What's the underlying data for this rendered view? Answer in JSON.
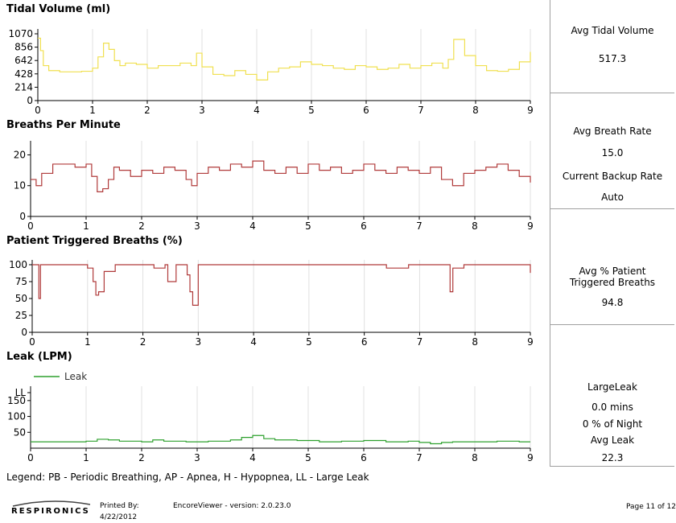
{
  "panels": [
    {
      "title": "Tidal Volume (ml)",
      "y_ticks": [
        "1070",
        "856",
        "642",
        "428",
        "214",
        "0"
      ],
      "x_ticks": [
        "0",
        "1",
        "2",
        "3",
        "4",
        "5",
        "6",
        "7",
        "8",
        "9"
      ]
    },
    {
      "title": "Breaths Per Minute",
      "y_ticks": [
        "20",
        "10",
        "0"
      ],
      "x_ticks": [
        "0",
        "1",
        "2",
        "3",
        "4",
        "5",
        "6",
        "7",
        "8",
        "9"
      ]
    },
    {
      "title": "Patient Triggered Breaths (%)",
      "y_ticks": [
        "100",
        "75",
        "50",
        "25",
        "0"
      ],
      "x_ticks": [
        "0",
        "1",
        "2",
        "3",
        "4",
        "5",
        "6",
        "7",
        "8",
        "9"
      ]
    },
    {
      "title": "Leak (LPM)",
      "y_ticks": [
        "LL",
        "150",
        "100",
        "50"
      ],
      "x_ticks": [
        "0",
        "1",
        "2",
        "3",
        "4",
        "5",
        "6",
        "7",
        "8",
        "9"
      ],
      "legend": "Leak"
    }
  ],
  "side": {
    "tidal_label": "Avg Tidal Volume",
    "tidal_value": "517.3",
    "breath_rate_label": "Avg Breath Rate",
    "breath_rate_value": "15.0",
    "backup_label": "Current Backup Rate",
    "backup_value": "Auto",
    "pt_label_1": "Avg % Patient",
    "pt_label_2": "Triggered Breaths",
    "pt_value": "94.8",
    "leak_title": "LargeLeak",
    "leak_mins": "0.0 mins",
    "leak_pct": "0 % of Night",
    "avg_leak_label": "Avg Leak",
    "avg_leak_value": "22.3"
  },
  "legend_note": "Legend: PB - Periodic Breathing, AP - Apnea, H - Hypopnea, LL - Large Leak",
  "footer": {
    "printed_by_label": "Printed By:",
    "printed_date": "4/22/2012",
    "version": "EncoreViewer - version: 2.0.23.0",
    "page": "Page 11 of 12",
    "logo": "RESPIRONICS"
  },
  "colors": {
    "tidal": "#f0e050",
    "breaths": "#b03a3a",
    "triggered": "#b03a3a",
    "leak": "#2ea02e",
    "grid": "#e0e0e0",
    "axis": "#000000"
  },
  "chart_data": [
    {
      "type": "line",
      "title": "Tidal Volume (ml)",
      "ylim": [
        0,
        1070
      ],
      "xlim": [
        0,
        9
      ],
      "x": [
        0,
        0.05,
        0.1,
        0.2,
        0.4,
        0.6,
        0.8,
        1.0,
        1.1,
        1.2,
        1.3,
        1.4,
        1.5,
        1.6,
        1.8,
        2.0,
        2.2,
        2.4,
        2.6,
        2.8,
        2.9,
        3.0,
        3.2,
        3.4,
        3.6,
        3.8,
        4.0,
        4.2,
        4.4,
        4.6,
        4.8,
        5.0,
        5.2,
        5.4,
        5.6,
        5.8,
        6.0,
        6.2,
        6.4,
        6.6,
        6.8,
        7.0,
        7.2,
        7.4,
        7.5,
        7.6,
        7.8,
        8.0,
        8.2,
        8.4,
        8.6,
        8.8,
        9.0
      ],
      "y": [
        1000,
        800,
        560,
        480,
        460,
        460,
        470,
        520,
        700,
        920,
        820,
        640,
        560,
        600,
        580,
        520,
        560,
        560,
        600,
        560,
        760,
        540,
        420,
        400,
        480,
        420,
        330,
        460,
        520,
        540,
        620,
        580,
        560,
        520,
        500,
        560,
        540,
        500,
        520,
        580,
        520,
        560,
        600,
        520,
        660,
        980,
        720,
        560,
        480,
        470,
        500,
        620,
        780
      ]
    },
    {
      "type": "line",
      "title": "Breaths Per Minute",
      "ylim": [
        0,
        23
      ],
      "xlim": [
        0,
        9
      ],
      "x": [
        0,
        0.1,
        0.2,
        0.4,
        0.6,
        0.8,
        1.0,
        1.1,
        1.2,
        1.3,
        1.4,
        1.5,
        1.6,
        1.8,
        2.0,
        2.2,
        2.4,
        2.6,
        2.8,
        2.9,
        3.0,
        3.2,
        3.4,
        3.6,
        3.8,
        4.0,
        4.2,
        4.4,
        4.6,
        4.8,
        5.0,
        5.2,
        5.4,
        5.6,
        5.8,
        6.0,
        6.2,
        6.4,
        6.6,
        6.8,
        7.0,
        7.2,
        7.4,
        7.6,
        7.8,
        8.0,
        8.2,
        8.4,
        8.6,
        8.8,
        9.0
      ],
      "y": [
        12,
        10,
        14,
        17,
        17,
        16,
        17,
        13,
        8,
        9,
        12,
        16,
        15,
        13,
        15,
        14,
        16,
        15,
        12,
        10,
        14,
        16,
        15,
        17,
        16,
        18,
        15,
        14,
        16,
        14,
        17,
        15,
        16,
        14,
        15,
        17,
        15,
        14,
        16,
        15,
        14,
        16,
        12,
        10,
        14,
        15,
        16,
        17,
        15,
        13,
        11
      ]
    },
    {
      "type": "line",
      "title": "Patient Triggered Breaths (%)",
      "ylim": [
        0,
        100
      ],
      "xlim": [
        0,
        9
      ],
      "x": [
        0,
        0.1,
        0.12,
        0.15,
        0.3,
        0.6,
        0.9,
        1.0,
        1.1,
        1.15,
        1.2,
        1.3,
        1.5,
        1.8,
        2.0,
        2.2,
        2.4,
        2.45,
        2.6,
        2.8,
        2.85,
        2.9,
        3.0,
        3.3,
        3.6,
        4.0,
        4.4,
        4.8,
        5.2,
        5.6,
        6.0,
        6.4,
        6.8,
        7.2,
        7.5,
        7.55,
        7.6,
        7.8,
        8.2,
        8.6,
        9.0
      ],
      "y": [
        100,
        100,
        50,
        100,
        100,
        100,
        100,
        95,
        75,
        55,
        60,
        90,
        100,
        100,
        100,
        95,
        100,
        75,
        100,
        85,
        60,
        40,
        100,
        100,
        100,
        100,
        100,
        100,
        100,
        100,
        100,
        95,
        100,
        100,
        100,
        60,
        95,
        100,
        100,
        100,
        88
      ]
    },
    {
      "type": "line",
      "title": "Leak (LPM)",
      "ylim": [
        0,
        180
      ],
      "xlim": [
        0,
        9
      ],
      "y_tick_labels": [
        "LL",
        "150",
        "100",
        "50"
      ],
      "series": [
        {
          "name": "Leak"
        }
      ],
      "x": [
        0,
        0.5,
        1.0,
        1.2,
        1.4,
        1.6,
        2.0,
        2.2,
        2.4,
        2.8,
        3.2,
        3.6,
        3.8,
        4.0,
        4.2,
        4.4,
        4.8,
        5.2,
        5.6,
        6.0,
        6.4,
        6.8,
        7.0,
        7.2,
        7.4,
        7.6,
        8.0,
        8.4,
        8.8,
        9.0
      ],
      "y": [
        20,
        20,
        22,
        28,
        26,
        22,
        20,
        26,
        22,
        20,
        22,
        26,
        34,
        40,
        30,
        26,
        24,
        20,
        22,
        24,
        20,
        22,
        18,
        14,
        18,
        20,
        20,
        22,
        20,
        20
      ]
    }
  ]
}
